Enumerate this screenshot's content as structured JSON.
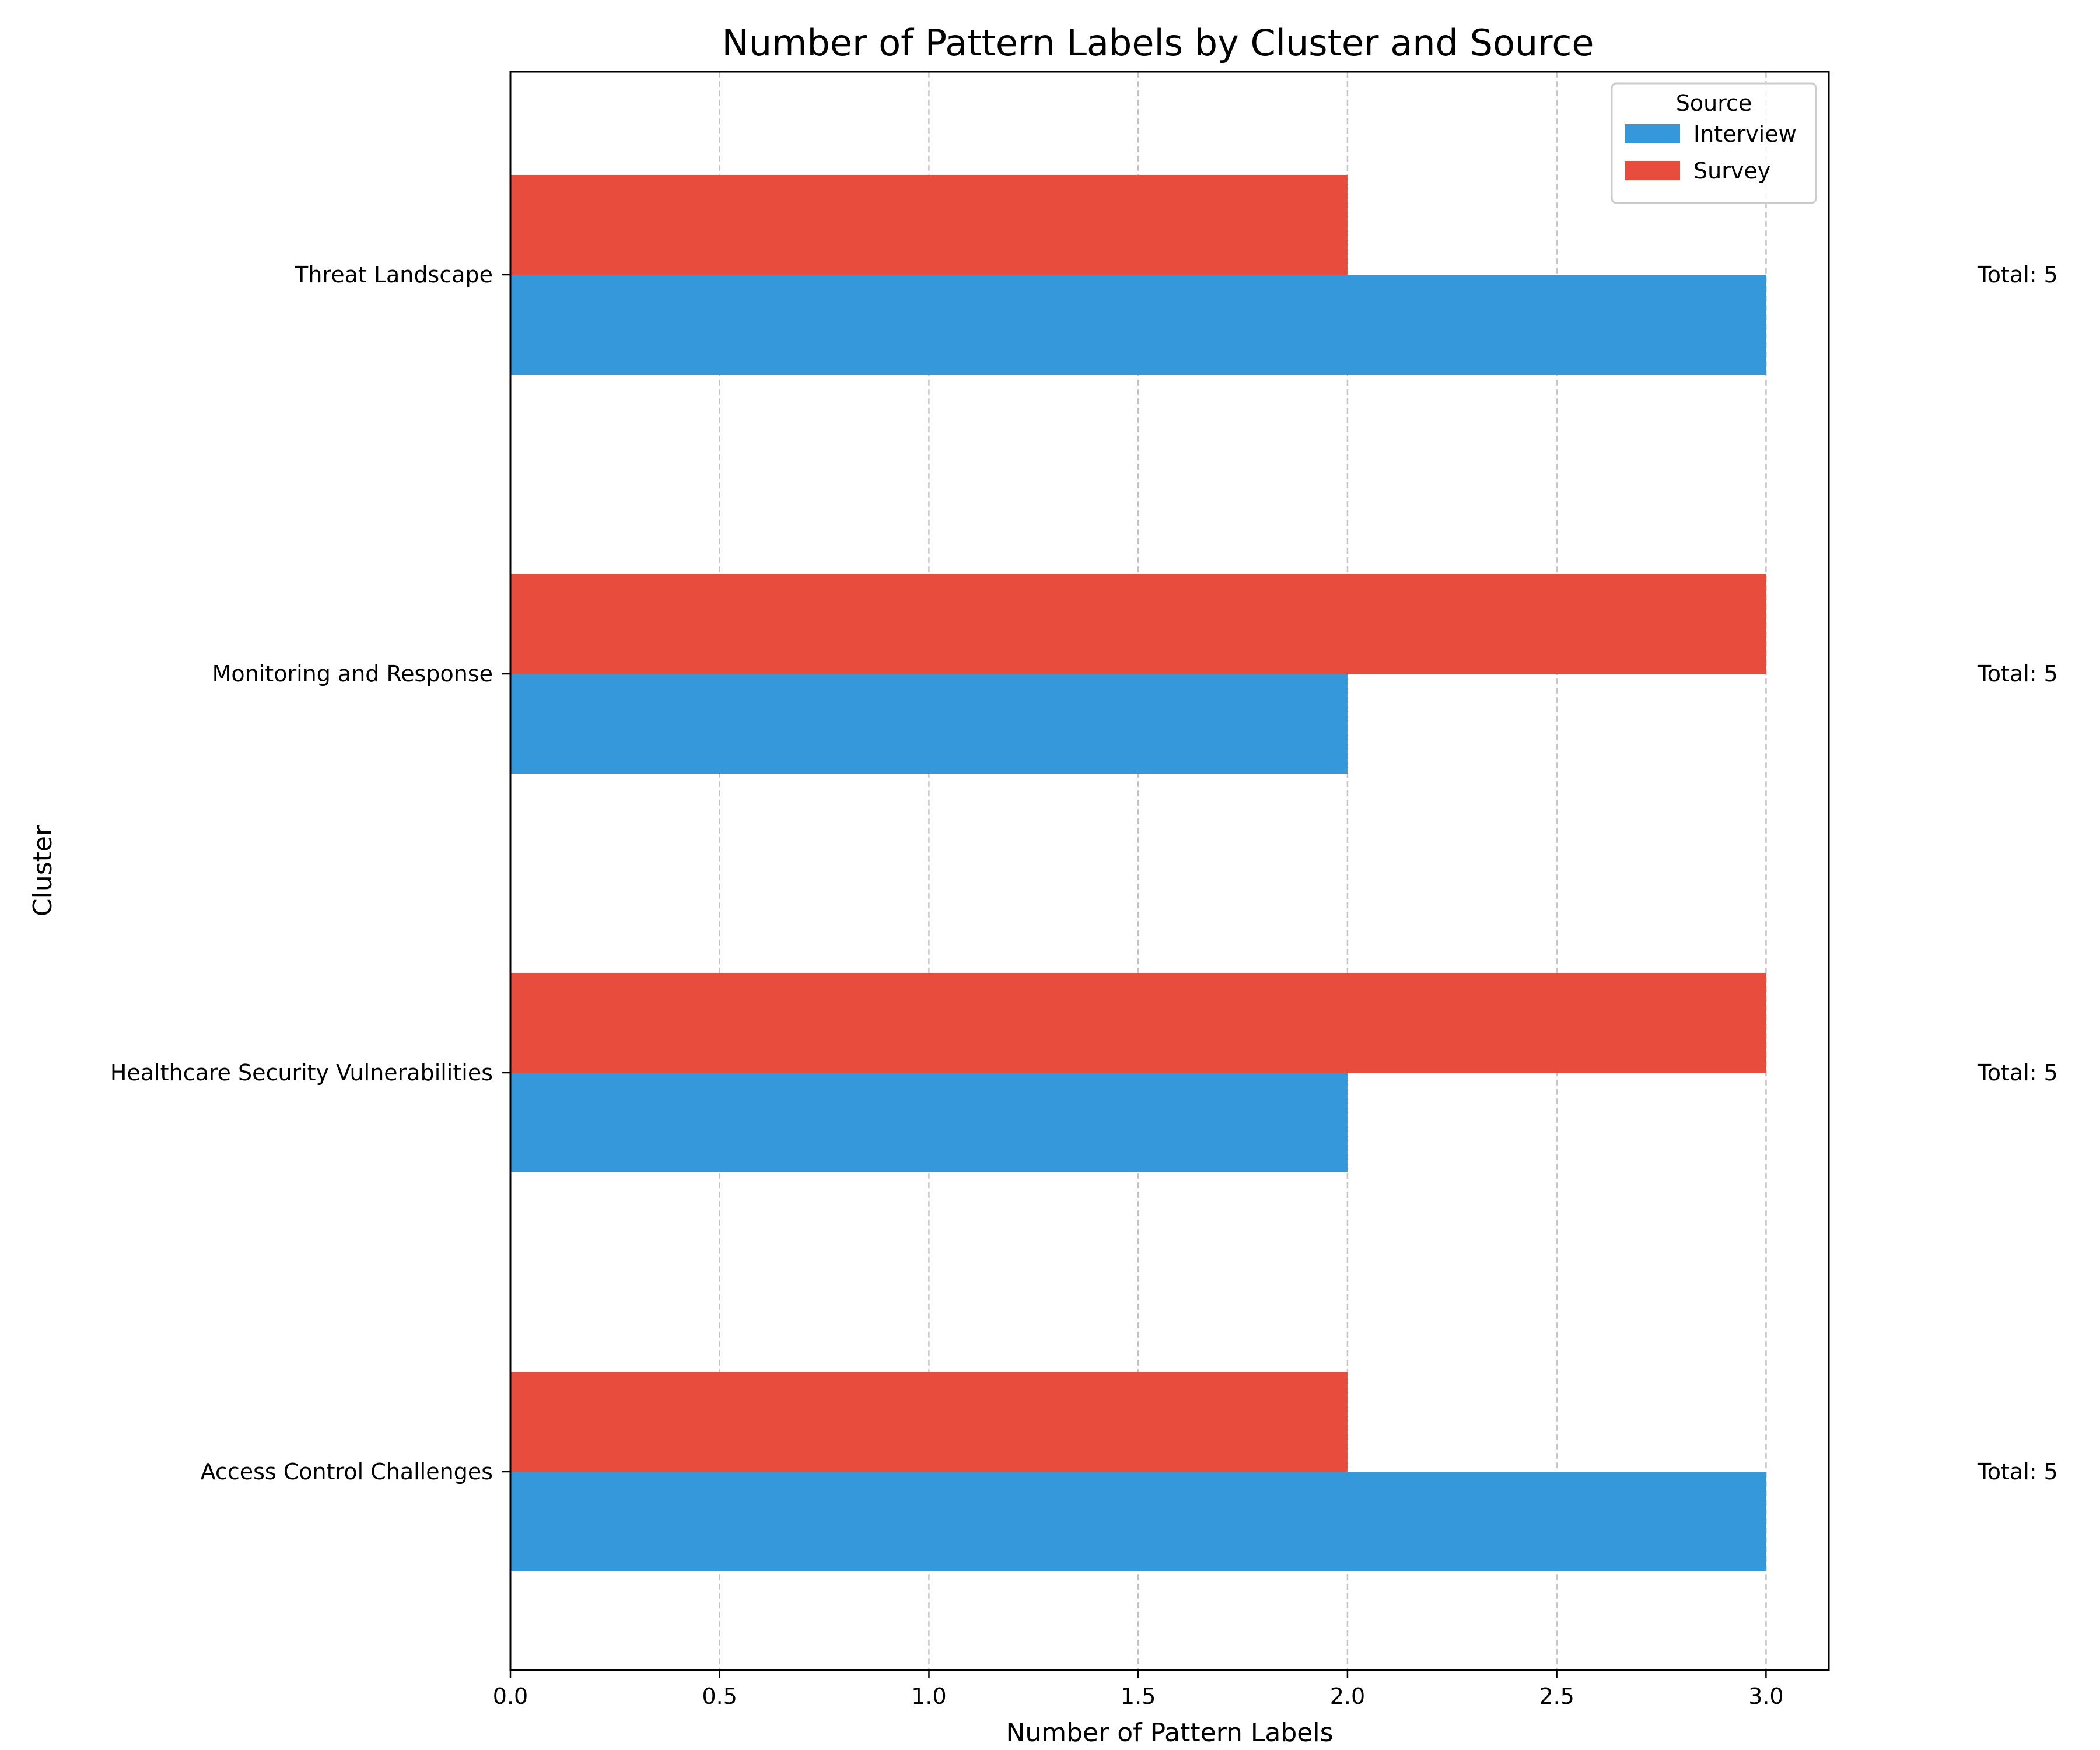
{
  "chart_data": {
    "type": "bar",
    "orientation": "horizontal",
    "title": "Number of Pattern Labels by Cluster and Source",
    "xlabel": "Number of Pattern Labels",
    "ylabel": "Cluster",
    "xlim": [
      0,
      3.15
    ],
    "xticks": [
      0.0,
      0.5,
      1.0,
      1.5,
      2.0,
      2.5,
      3.0
    ],
    "xtick_labels": [
      "0.0",
      "0.5",
      "1.0",
      "1.5",
      "2.0",
      "2.5",
      "3.0"
    ],
    "categories": [
      "Access Control Challenges",
      "Healthcare Security Vulnerabilities",
      "Monitoring and Response",
      "Threat Landscape"
    ],
    "series": [
      {
        "name": "Interview",
        "color": "#3498db",
        "values": [
          3,
          2,
          2,
          3
        ]
      },
      {
        "name": "Survey",
        "color": "#e74c3c",
        "values": [
          2,
          3,
          3,
          2
        ]
      }
    ],
    "totals": [
      "Total: 5",
      "Total: 5",
      "Total: 5",
      "Total: 5"
    ],
    "legend": {
      "title": "Source",
      "position": "top-right"
    },
    "grid": {
      "x": true,
      "y": false,
      "style": "dashed"
    }
  }
}
